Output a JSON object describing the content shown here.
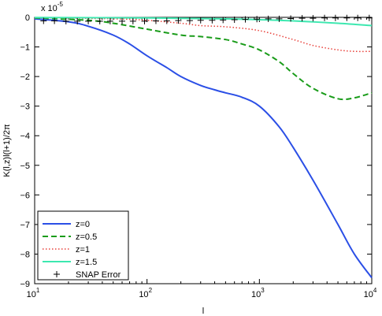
{
  "chart_data": {
    "type": "line",
    "xlabel": "l",
    "ylabel": "K(l,z)l(l+1)/2π",
    "xscale": "log",
    "xlim": [
      10,
      10000
    ],
    "ylim": [
      -9,
      0
    ],
    "y_multiplier": "x 10",
    "y_multiplier_exp": "-5",
    "x_tick_base": "10",
    "x_ticks": [
      {
        "value": 10,
        "exp": "1"
      },
      {
        "value": 100,
        "exp": "2"
      },
      {
        "value": 1000,
        "exp": "3"
      },
      {
        "value": 10000,
        "exp": "4"
      }
    ],
    "y_ticks": [
      0,
      -1,
      -2,
      -3,
      -4,
      -5,
      -6,
      -7,
      -8,
      -9
    ],
    "grid": false,
    "legend_position": "bottom-left",
    "series": [
      {
        "name": "z=0",
        "color": "#2b4fe6",
        "style": "solid",
        "points": [
          [
            10,
            -0.05
          ],
          [
            20,
            -0.15
          ],
          [
            30,
            -0.3
          ],
          [
            50,
            -0.6
          ],
          [
            70,
            -0.9
          ],
          [
            100,
            -1.3
          ],
          [
            150,
            -1.7
          ],
          [
            200,
            -2.0
          ],
          [
            300,
            -2.3
          ],
          [
            400,
            -2.45
          ],
          [
            500,
            -2.55
          ],
          [
            700,
            -2.7
          ],
          [
            1000,
            -3.0
          ],
          [
            1500,
            -3.7
          ],
          [
            2000,
            -4.4
          ],
          [
            3000,
            -5.5
          ],
          [
            5000,
            -7.0
          ],
          [
            7000,
            -8.0
          ],
          [
            10000,
            -8.8
          ]
        ]
      },
      {
        "name": "z=0.5",
        "color": "#1a9c1a",
        "style": "dashed",
        "points": [
          [
            10,
            -0.02
          ],
          [
            30,
            -0.1
          ],
          [
            50,
            -0.2
          ],
          [
            100,
            -0.4
          ],
          [
            200,
            -0.6
          ],
          [
            300,
            -0.65
          ],
          [
            500,
            -0.75
          ],
          [
            700,
            -0.9
          ],
          [
            1000,
            -1.1
          ],
          [
            1500,
            -1.5
          ],
          [
            2000,
            -1.9
          ],
          [
            3000,
            -2.4
          ],
          [
            5000,
            -2.75
          ],
          [
            7000,
            -2.72
          ],
          [
            10000,
            -2.55
          ]
        ]
      },
      {
        "name": "z=1",
        "color": "#e8403a",
        "style": "dotted",
        "points": [
          [
            10,
            -0.01
          ],
          [
            50,
            -0.05
          ],
          [
            100,
            -0.1
          ],
          [
            200,
            -0.2
          ],
          [
            300,
            -0.28
          ],
          [
            500,
            -0.32
          ],
          [
            1000,
            -0.45
          ],
          [
            2000,
            -0.75
          ],
          [
            3000,
            -0.95
          ],
          [
            5000,
            -1.1
          ],
          [
            7000,
            -1.15
          ],
          [
            10000,
            -1.15
          ]
        ]
      },
      {
        "name": "z=1.5",
        "color": "#3de8b0",
        "style": "solid",
        "points": [
          [
            10,
            -0.005
          ],
          [
            100,
            -0.02
          ],
          [
            500,
            -0.05
          ],
          [
            1000,
            -0.08
          ],
          [
            2000,
            -0.12
          ],
          [
            5000,
            -0.2
          ],
          [
            10000,
            -0.28
          ]
        ]
      },
      {
        "name": "SNAP Error",
        "color": "#000000",
        "style": "markers-plus",
        "points": [
          [
            12,
            -0.12
          ],
          [
            15,
            -0.12
          ],
          [
            19,
            -0.13
          ],
          [
            24,
            -0.13
          ],
          [
            30,
            -0.13
          ],
          [
            38,
            -0.13
          ],
          [
            47,
            -0.13
          ],
          [
            60,
            -0.13
          ],
          [
            75,
            -0.13
          ],
          [
            95,
            -0.13
          ],
          [
            120,
            -0.12
          ],
          [
            150,
            -0.12
          ],
          [
            190,
            -0.11
          ],
          [
            240,
            -0.11
          ],
          [
            300,
            -0.1
          ],
          [
            380,
            -0.1
          ],
          [
            475,
            -0.09
          ],
          [
            600,
            -0.08
          ],
          [
            750,
            -0.07
          ],
          [
            950,
            -0.06
          ],
          [
            1200,
            -0.05
          ],
          [
            1500,
            -0.05
          ],
          [
            1900,
            -0.04
          ],
          [
            2400,
            -0.03
          ],
          [
            3000,
            -0.03
          ],
          [
            3800,
            -0.02
          ],
          [
            4750,
            -0.02
          ],
          [
            6000,
            -0.02
          ],
          [
            7500,
            -0.02
          ],
          [
            9500,
            -0.02
          ]
        ]
      }
    ]
  }
}
